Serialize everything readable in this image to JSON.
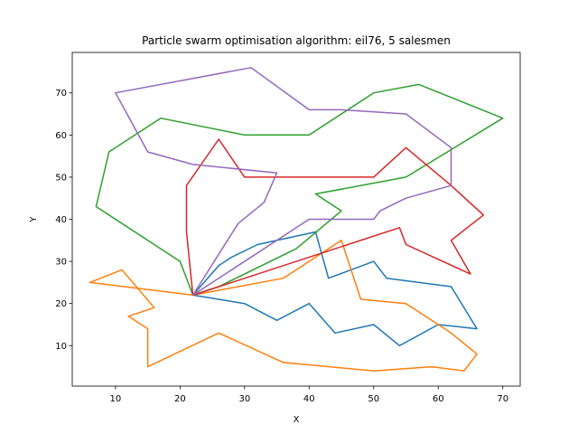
{
  "chart_data": {
    "type": "line",
    "title": "Particle swarm optimisation algorithm: eil76, 5 salesmen",
    "xlabel": "X",
    "ylabel": "Y",
    "xlim": [
      3.3,
      72.7
    ],
    "ylim": [
      0.4,
      79.6
    ],
    "xticks": [
      10,
      20,
      30,
      40,
      50,
      60,
      70
    ],
    "yticks": [
      10,
      20,
      30,
      40,
      50,
      60,
      70
    ],
    "grid": false,
    "legend": "none",
    "series": [
      {
        "color": "#1f77b4",
        "x": [
          22,
          26,
          28,
          32,
          41,
          43,
          50,
          52,
          62,
          66,
          60,
          54,
          50,
          44,
          40,
          35,
          30,
          22
        ],
        "y": [
          22,
          29,
          31,
          34,
          37,
          26,
          30,
          26,
          24,
          14,
          15,
          10,
          15,
          13,
          20,
          16,
          20,
          22
        ]
      },
      {
        "color": "#ff7f0e",
        "x": [
          22,
          6,
          11,
          16,
          12,
          15,
          15,
          26,
          36,
          50,
          59,
          64,
          66,
          62,
          55,
          48,
          45,
          36,
          22
        ],
        "y": [
          22,
          25,
          28,
          19,
          17,
          14,
          5,
          13,
          6,
          4,
          5,
          4,
          8,
          13,
          20,
          21,
          35,
          26,
          22
        ]
      },
      {
        "color": "#2ca02c",
        "x": [
          22,
          20,
          7,
          9,
          17,
          30,
          40,
          50,
          57,
          70,
          55,
          41,
          45,
          38,
          26,
          22
        ],
        "y": [
          22,
          30,
          43,
          56,
          64,
          60,
          60,
          70,
          72,
          64,
          50,
          46,
          42,
          33,
          24,
          22
        ],
        "x_extra_note": ""
      },
      {
        "color": "#d62728",
        "x": [
          22,
          21,
          21,
          26,
          30,
          50,
          55,
          62,
          67,
          62,
          65,
          55,
          54,
          22
        ],
        "y": [
          22,
          37,
          48,
          59,
          50,
          50,
          57,
          48,
          41,
          35,
          27,
          34,
          38,
          22
        ]
      },
      {
        "color": "#9467bd",
        "x": [
          22,
          29,
          33,
          35,
          22,
          15,
          10,
          31,
          40,
          45,
          55,
          62,
          62,
          55,
          51,
          50,
          40,
          22
        ],
        "y": [
          22,
          39,
          44,
          51,
          53,
          56,
          70,
          76,
          66,
          66,
          65,
          57,
          48,
          45,
          42,
          40,
          40,
          22
        ]
      }
    ]
  }
}
